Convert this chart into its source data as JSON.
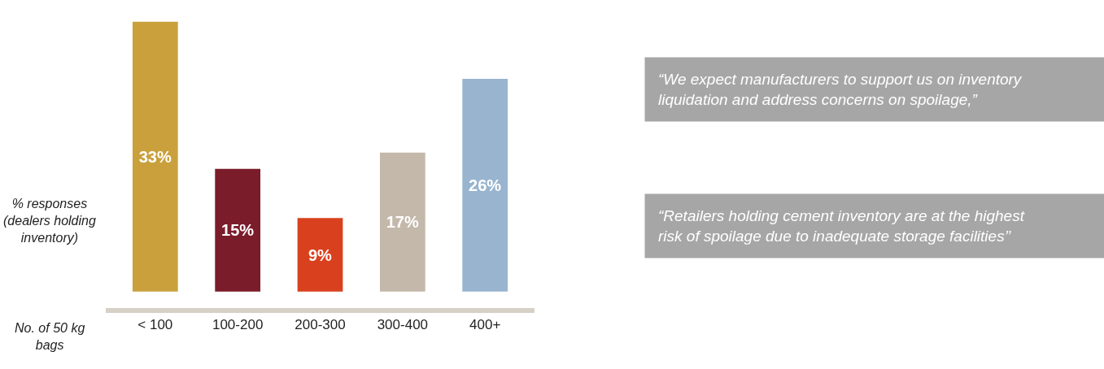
{
  "chart_data": {
    "type": "bar",
    "categories": [
      "< 100",
      "100-200",
      "200-300",
      "300-400",
      "400+"
    ],
    "values": [
      33,
      15,
      9,
      17,
      26
    ],
    "colors": [
      "#c9a03c",
      "#7b1c2a",
      "#d9411e",
      "#c4b8aa",
      "#98b4cf"
    ],
    "value_labels": [
      "33%",
      "15%",
      "9%",
      "17%",
      "26%"
    ],
    "ylabel": "% responses (dealers holding inventory)",
    "xlabel": "No. of 50 kg bags",
    "annotations": [
      "“We expect manufacturers to support us on inventory liquidation and address concerns on spoilage,”",
      "“Retailers holding cement inventory are at the highest risk of spoilage due to inadequate storage facilities’’"
    ]
  }
}
